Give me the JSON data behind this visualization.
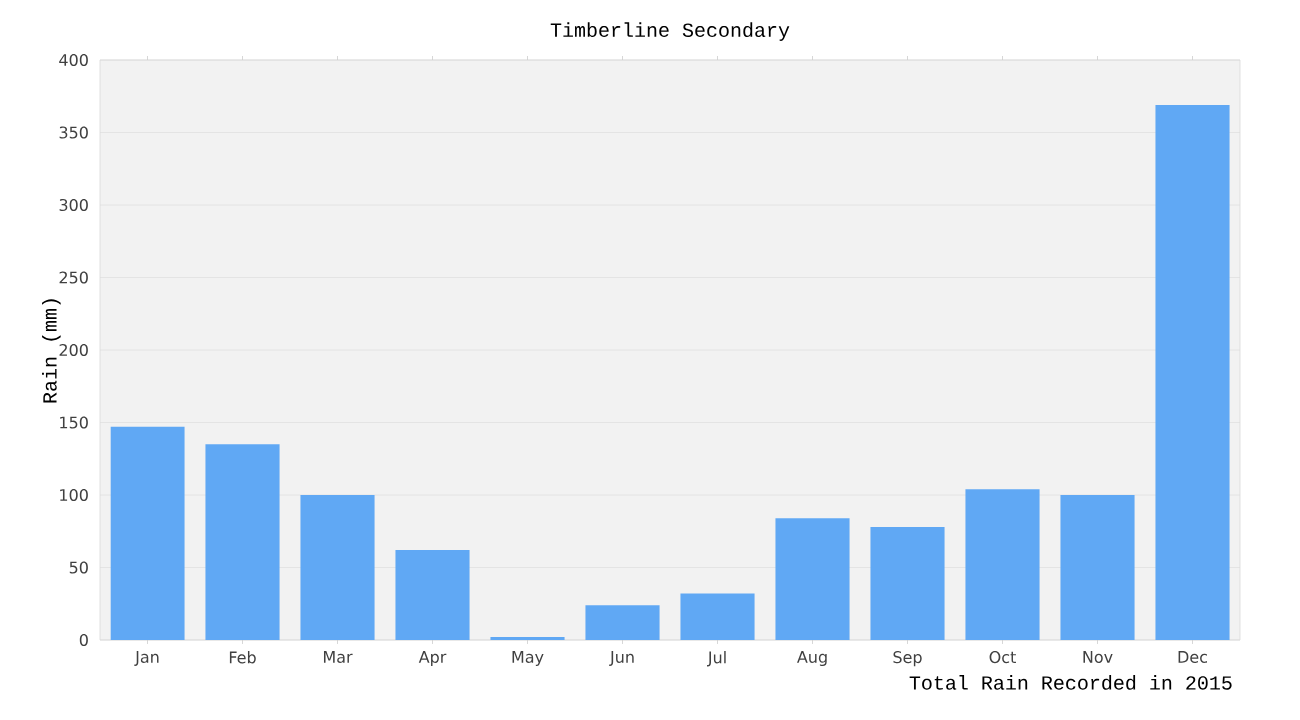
{
  "chart_data": {
    "type": "bar",
    "title": "Timberline Secondary",
    "xlabel": "Total Rain Recorded in 2015",
    "ylabel": "Rain (mm)",
    "categories": [
      "Jan",
      "Feb",
      "Mar",
      "Apr",
      "May",
      "Jun",
      "Jul",
      "Aug",
      "Sep",
      "Oct",
      "Nov",
      "Dec"
    ],
    "values": [
      147,
      135,
      100,
      62,
      2,
      24,
      32,
      84,
      78,
      104,
      100,
      369
    ],
    "color": "#60a8f4",
    "ylim": [
      0,
      400
    ],
    "yticks": [
      0,
      50,
      100,
      150,
      200,
      250,
      300,
      350,
      400
    ],
    "grid": "y"
  }
}
